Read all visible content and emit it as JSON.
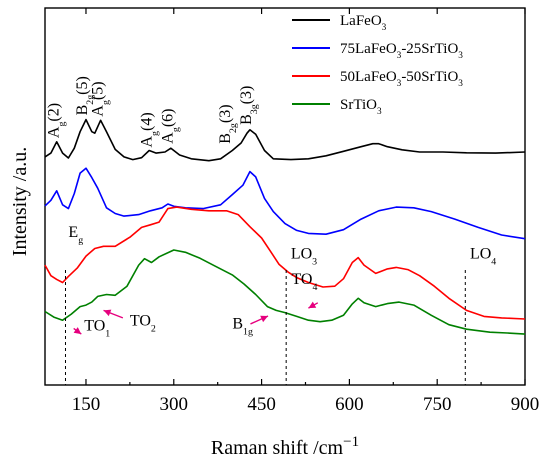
{
  "chart_data": {
    "type": "line",
    "title": "",
    "xlabel_main": "Raman shift /cm",
    "xlabel_sup": "−1",
    "ylabel": "Intensity /a.u.",
    "xlim": [
      80,
      900
    ],
    "x_ticks": [
      150,
      300,
      450,
      600,
      750,
      900
    ],
    "grid": false,
    "legend_position": "top-right",
    "series": [
      {
        "name_base": "LaFeO",
        "name_sub": "3",
        "name_rest": "",
        "color": "#000000",
        "points": [
          [
            80,
            0.605
          ],
          [
            90,
            0.615
          ],
          [
            100,
            0.645
          ],
          [
            110,
            0.615
          ],
          [
            120,
            0.602
          ],
          [
            130,
            0.628
          ],
          [
            140,
            0.672
          ],
          [
            150,
            0.704
          ],
          [
            160,
            0.672
          ],
          [
            165,
            0.668
          ],
          [
            175,
            0.702
          ],
          [
            185,
            0.672
          ],
          [
            200,
            0.625
          ],
          [
            215,
            0.605
          ],
          [
            230,
            0.598
          ],
          [
            245,
            0.603
          ],
          [
            258,
            0.622
          ],
          [
            270,
            0.615
          ],
          [
            285,
            0.618
          ],
          [
            295,
            0.628
          ],
          [
            310,
            0.61
          ],
          [
            330,
            0.6
          ],
          [
            360,
            0.595
          ],
          [
            380,
            0.6
          ],
          [
            400,
            0.622
          ],
          [
            415,
            0.642
          ],
          [
            425,
            0.668
          ],
          [
            430,
            0.677
          ],
          [
            440,
            0.665
          ],
          [
            455,
            0.622
          ],
          [
            470,
            0.6
          ],
          [
            500,
            0.598
          ],
          [
            530,
            0.6
          ],
          [
            560,
            0.608
          ],
          [
            590,
            0.62
          ],
          [
            620,
            0.632
          ],
          [
            640,
            0.64
          ],
          [
            650,
            0.64
          ],
          [
            665,
            0.632
          ],
          [
            690,
            0.624
          ],
          [
            720,
            0.618
          ],
          [
            760,
            0.618
          ],
          [
            800,
            0.616
          ],
          [
            850,
            0.615
          ],
          [
            900,
            0.618
          ]
        ]
      },
      {
        "name_base": "75LaFeO",
        "name_sub": "3",
        "name_rest": "-25SrTiO",
        "name_sub2": "3",
        "color": "#0000ff",
        "points": [
          [
            80,
            0.475
          ],
          [
            90,
            0.49
          ],
          [
            100,
            0.515
          ],
          [
            110,
            0.478
          ],
          [
            120,
            0.468
          ],
          [
            130,
            0.508
          ],
          [
            140,
            0.562
          ],
          [
            150,
            0.575
          ],
          [
            160,
            0.55
          ],
          [
            170,
            0.522
          ],
          [
            185,
            0.47
          ],
          [
            200,
            0.455
          ],
          [
            215,
            0.448
          ],
          [
            240,
            0.452
          ],
          [
            260,
            0.462
          ],
          [
            280,
            0.47
          ],
          [
            290,
            0.48
          ],
          [
            300,
            0.474
          ],
          [
            320,
            0.47
          ],
          [
            350,
            0.468
          ],
          [
            380,
            0.478
          ],
          [
            400,
            0.505
          ],
          [
            418,
            0.53
          ],
          [
            430,
            0.566
          ],
          [
            440,
            0.552
          ],
          [
            455,
            0.495
          ],
          [
            470,
            0.46
          ],
          [
            490,
            0.428
          ],
          [
            510,
            0.41
          ],
          [
            530,
            0.402
          ],
          [
            560,
            0.4
          ],
          [
            590,
            0.412
          ],
          [
            620,
            0.44
          ],
          [
            650,
            0.462
          ],
          [
            680,
            0.472
          ],
          [
            710,
            0.47
          ],
          [
            740,
            0.46
          ],
          [
            780,
            0.44
          ],
          [
            820,
            0.418
          ],
          [
            860,
            0.398
          ],
          [
            900,
            0.388
          ]
        ]
      },
      {
        "name_base": "50LaFeO",
        "name_sub": "3",
        "name_rest": "-50SrTiO",
        "name_sub2": "3",
        "color": "#ff0000",
        "points": [
          [
            80,
            0.318
          ],
          [
            90,
            0.29
          ],
          [
            100,
            0.28
          ],
          [
            110,
            0.272
          ],
          [
            120,
            0.288
          ],
          [
            135,
            0.31
          ],
          [
            150,
            0.342
          ],
          [
            165,
            0.362
          ],
          [
            180,
            0.368
          ],
          [
            200,
            0.368
          ],
          [
            225,
            0.392
          ],
          [
            245,
            0.418
          ],
          [
            260,
            0.425
          ],
          [
            275,
            0.432
          ],
          [
            290,
            0.468
          ],
          [
            305,
            0.472
          ],
          [
            330,
            0.466
          ],
          [
            360,
            0.462
          ],
          [
            390,
            0.462
          ],
          [
            410,
            0.452
          ],
          [
            430,
            0.42
          ],
          [
            450,
            0.39
          ],
          [
            465,
            0.355
          ],
          [
            480,
            0.32
          ],
          [
            495,
            0.3
          ],
          [
            510,
            0.285
          ],
          [
            530,
            0.272
          ],
          [
            555,
            0.26
          ],
          [
            575,
            0.262
          ],
          [
            590,
            0.282
          ],
          [
            605,
            0.325
          ],
          [
            615,
            0.338
          ],
          [
            625,
            0.318
          ],
          [
            645,
            0.296
          ],
          [
            665,
            0.308
          ],
          [
            680,
            0.312
          ],
          [
            700,
            0.306
          ],
          [
            720,
            0.29
          ],
          [
            745,
            0.262
          ],
          [
            770,
            0.23
          ],
          [
            800,
            0.198
          ],
          [
            830,
            0.182
          ],
          [
            860,
            0.178
          ],
          [
            900,
            0.175
          ]
        ]
      },
      {
        "name_base": "SrTiO",
        "name_sub": "3",
        "name_rest": "",
        "color": "#008000",
        "points": [
          [
            80,
            0.195
          ],
          [
            95,
            0.18
          ],
          [
            110,
            0.172
          ],
          [
            125,
            0.188
          ],
          [
            140,
            0.208
          ],
          [
            150,
            0.212
          ],
          [
            160,
            0.22
          ],
          [
            170,
            0.235
          ],
          [
            185,
            0.24
          ],
          [
            200,
            0.238
          ],
          [
            220,
            0.262
          ],
          [
            240,
            0.318
          ],
          [
            250,
            0.335
          ],
          [
            262,
            0.325
          ],
          [
            275,
            0.34
          ],
          [
            300,
            0.358
          ],
          [
            320,
            0.352
          ],
          [
            345,
            0.336
          ],
          [
            370,
            0.316
          ],
          [
            400,
            0.292
          ],
          [
            420,
            0.268
          ],
          [
            440,
            0.24
          ],
          [
            460,
            0.208
          ],
          [
            475,
            0.198
          ],
          [
            490,
            0.192
          ],
          [
            510,
            0.182
          ],
          [
            530,
            0.172
          ],
          [
            550,
            0.168
          ],
          [
            570,
            0.172
          ],
          [
            590,
            0.185
          ],
          [
            605,
            0.215
          ],
          [
            615,
            0.23
          ],
          [
            625,
            0.218
          ],
          [
            645,
            0.208
          ],
          [
            665,
            0.216
          ],
          [
            685,
            0.22
          ],
          [
            710,
            0.212
          ],
          [
            740,
            0.185
          ],
          [
            770,
            0.16
          ],
          [
            800,
            0.148
          ],
          [
            840,
            0.14
          ],
          [
            870,
            0.138
          ],
          [
            900,
            0.135
          ]
        ]
      }
    ],
    "vlines": [
      115,
      492,
      798
    ],
    "peak_labels": [
      {
        "base": "A",
        "sub": "g",
        "rest": "(2)",
        "x": 103,
        "y": 0.655
      },
      {
        "base": "B",
        "sub": "2g",
        "rest": "(5)",
        "x": 152,
        "y": 0.715
      },
      {
        "base": "A",
        "sub": "g",
        "rest": "(5)",
        "x": 178,
        "y": 0.712
      },
      {
        "base": "A",
        "sub": "g",
        "rest": "(4)",
        "x": 262,
        "y": 0.63
      },
      {
        "base": "A",
        "sub": "g",
        "rest": "(6)",
        "x": 298,
        "y": 0.64
      },
      {
        "base": "B",
        "sub": "2g",
        "rest": "(3)",
        "x": 396,
        "y": 0.64
      },
      {
        "base": "B",
        "sub": "3g",
        "rest": "(3)",
        "x": 432,
        "y": 0.69
      }
    ],
    "band_labels": [
      {
        "base": "E",
        "sub": "g",
        "x": 120,
        "y": 0.392
      },
      {
        "base": "LO",
        "sub": "3",
        "x": 500,
        "y": 0.335
      },
      {
        "base": "TO",
        "sub": "4",
        "x": 501,
        "y": 0.268
      },
      {
        "base": "LO",
        "sub": "4",
        "x": 806,
        "y": 0.335
      },
      {
        "base": "TO",
        "sub": "1",
        "x": 147,
        "y": 0.145
      },
      {
        "base": "TO",
        "sub": "2",
        "x": 225,
        "y": 0.158
      },
      {
        "base": "B",
        "sub": "1g",
        "x": 400,
        "y": 0.15
      }
    ],
    "arrows": [
      {
        "from": [
          129,
          0.15
        ],
        "to": [
          142,
          0.135
        ]
      },
      {
        "from": [
          213,
          0.178
        ],
        "to": [
          180,
          0.198
        ]
      },
      {
        "from": [
          431,
          0.162
        ],
        "to": [
          461,
          0.183
        ]
      },
      {
        "from": [
          546,
          0.218
        ],
        "to": [
          530,
          0.204
        ]
      }
    ],
    "arrow_color": "#e6007e"
  }
}
